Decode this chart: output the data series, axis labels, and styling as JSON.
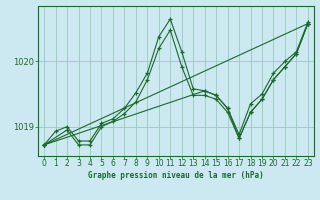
{
  "background_color": "#cce8f0",
  "grid_color": "#99ccbb",
  "line_color": "#1a6b2a",
  "title": "Graphe pression niveau de la mer (hPa)",
  "xlim": [
    -0.5,
    23.5
  ],
  "ylim": [
    1018.55,
    1020.85
  ],
  "yticks": [
    1019,
    1020
  ],
  "xticks": [
    0,
    1,
    2,
    3,
    4,
    5,
    6,
    7,
    8,
    9,
    10,
    11,
    12,
    13,
    14,
    15,
    16,
    17,
    18,
    19,
    20,
    21,
    22,
    23
  ],
  "series": [
    {
      "x": [
        0,
        1,
        2,
        3,
        4,
        5,
        6,
        7,
        8,
        9,
        10,
        11,
        12,
        13,
        14,
        15,
        16,
        17,
        18,
        19,
        20,
        21,
        22,
        23
      ],
      "y": [
        1018.72,
        1018.93,
        1019.0,
        1018.78,
        1018.78,
        1019.05,
        1019.12,
        1019.28,
        1019.52,
        1019.82,
        1020.38,
        1020.65,
        1020.15,
        1019.58,
        1019.55,
        1019.48,
        1019.28,
        1018.88,
        1019.35,
        1019.5,
        1019.82,
        1020.0,
        1020.15,
        1020.6
      ]
    },
    {
      "x": [
        0,
        2,
        3,
        4,
        5,
        6,
        7,
        8,
        9,
        10,
        11,
        12,
        13,
        14,
        15,
        16,
        17,
        18,
        19,
        20,
        21,
        22,
        23
      ],
      "y": [
        1018.72,
        1018.95,
        1018.72,
        1018.72,
        1019.0,
        1019.08,
        1019.2,
        1019.38,
        1019.72,
        1020.2,
        1020.48,
        1019.92,
        1019.48,
        1019.48,
        1019.42,
        1019.22,
        1018.82,
        1019.22,
        1019.42,
        1019.72,
        1019.92,
        1020.12,
        1020.58
      ]
    },
    {
      "x": [
        0,
        14,
        15,
        16,
        17,
        18,
        19,
        20,
        21,
        22,
        23
      ],
      "y": [
        1018.72,
        1019.55,
        1019.48,
        1019.28,
        1018.82,
        1019.22,
        1019.42,
        1019.72,
        1019.92,
        1020.12,
        1020.58
      ]
    },
    {
      "x": [
        0,
        23
      ],
      "y": [
        1018.72,
        1020.58
      ]
    }
  ]
}
